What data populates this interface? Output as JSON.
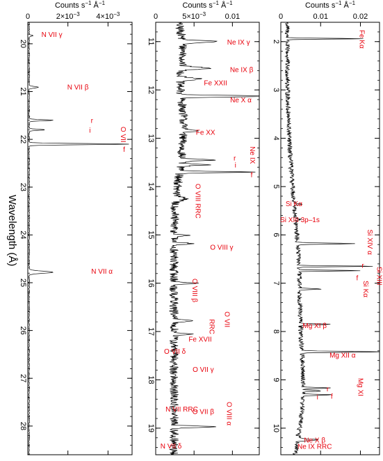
{
  "figure": {
    "ylabel": "Wavelength (Å)",
    "xlabel_main": "Counts s",
    "xlabel_sup1": "−1",
    "xlabel_mid": " Å",
    "xlabel_sup2": "−1",
    "line_color": "#000000",
    "label_color": "#e8000b"
  },
  "chart_data": [
    {
      "type": "line",
      "orientation": "wavelength-vertical",
      "xlabel": "Counts s⁻¹ Å⁻¹",
      "ylabel": "Wavelength (Å)",
      "xlim": [
        0,
        0.0052
      ],
      "ylim": [
        19.55,
        28.6
      ],
      "xticks": [
        {
          "v": 0,
          "main": "0"
        },
        {
          "v": 0.002,
          "main": "2×10",
          "sup": "−3"
        },
        {
          "v": 0.004,
          "main": "4×10",
          "sup": "−3"
        }
      ],
      "yticks": [
        20,
        21,
        22,
        23,
        24,
        25,
        26,
        27,
        28
      ],
      "baseline": 6e-05,
      "noise": 5e-05,
      "continuum": [],
      "lines": [
        {
          "w": 19.83,
          "amp": 0.0002,
          "sig": 0.012
        },
        {
          "w": 20.91,
          "amp": 0.00045,
          "sig": 0.015
        },
        {
          "w": 21.6,
          "amp": 0.0012,
          "sig": 0.012
        },
        {
          "w": 21.8,
          "amp": 0.0008,
          "sig": 0.012
        },
        {
          "w": 22.1,
          "amp": 0.005,
          "sig": 0.012
        },
        {
          "w": 24.78,
          "amp": 0.0012,
          "sig": 0.022
        }
      ],
      "labels": [
        {
          "text": "N VII γ",
          "w": 19.8,
          "v": 0.0012
        },
        {
          "text": "N VII β",
          "w": 20.9,
          "v": 0.0025
        },
        {
          "text": "r",
          "w": 21.6,
          "v": 0.0032
        },
        {
          "text": "i",
          "w": 21.8,
          "v": 0.0031
        },
        {
          "text": "O VII",
          "w": 21.9,
          "v": 0.00465,
          "rot": 90
        },
        {
          "text": "f",
          "w": 22.2,
          "v": 0.0048
        },
        {
          "text": "N VII α",
          "w": 24.75,
          "v": 0.0037
        }
      ]
    },
    {
      "type": "line",
      "orientation": "wavelength-vertical",
      "xlabel": "Counts s⁻¹ Å⁻¹",
      "ylabel": "Wavelength (Å)",
      "xlim": [
        0,
        0.0135
      ],
      "ylim": [
        10.6,
        19.55
      ],
      "xticks": [
        {
          "v": 0,
          "main": "0"
        },
        {
          "v": 0.005,
          "main": "5×10",
          "sup": "−3"
        },
        {
          "v": 0.01,
          "main": "0.01"
        }
      ],
      "yticks": [
        11,
        12,
        13,
        14,
        15,
        16,
        17,
        18,
        19
      ],
      "baseline": 0.0022,
      "noise": 0.0012,
      "continuum": [
        {
          "w": 11.2,
          "amp": 0.0012,
          "sig": 0.5
        },
        {
          "w": 12.5,
          "amp": 0.001,
          "sig": 0.4
        },
        {
          "w": 13.4,
          "amp": 0.0009,
          "sig": 0.5
        }
      ],
      "lines": [
        {
          "w": 11.0,
          "amp": 0.0045,
          "sig": 0.02
        },
        {
          "w": 11.55,
          "amp": 0.004,
          "sig": 0.02
        },
        {
          "w": 11.77,
          "amp": 0.003,
          "sig": 0.02
        },
        {
          "w": 12.13,
          "amp": 0.0125,
          "sig": 0.015
        },
        {
          "w": 12.84,
          "amp": 0.002,
          "sig": 0.02
        },
        {
          "w": 13.45,
          "amp": 0.0045,
          "sig": 0.015
        },
        {
          "w": 13.55,
          "amp": 0.0035,
          "sig": 0.015
        },
        {
          "w": 13.7,
          "amp": 0.0095,
          "sig": 0.012
        },
        {
          "w": 14.25,
          "amp": 0.0015,
          "sig": 0.03
        },
        {
          "w": 15.01,
          "amp": 0.002,
          "sig": 0.015
        },
        {
          "w": 15.18,
          "amp": 0.0022,
          "sig": 0.015
        },
        {
          "w": 16.0,
          "amp": 0.003,
          "sig": 0.015
        },
        {
          "w": 16.78,
          "amp": 0.0028,
          "sig": 0.015
        },
        {
          "w": 17.05,
          "amp": 0.0025,
          "sig": 0.015
        },
        {
          "w": 18.97,
          "amp": 0.0055,
          "sig": 0.015
        }
      ],
      "labels": [
        {
          "text": "Ne IX γ",
          "w": 11.0,
          "v": 0.0108
        },
        {
          "text": "Ne IX β",
          "w": 11.57,
          "v": 0.0112
        },
        {
          "text": "Fe XXII",
          "w": 11.85,
          "v": 0.0078
        },
        {
          "text": "Ne X α",
          "w": 12.2,
          "v": 0.0111
        },
        {
          "text": "Fe XX",
          "w": 12.87,
          "v": 0.0065
        },
        {
          "text": "r",
          "w": 13.4,
          "v": 0.0103
        },
        {
          "text": "i",
          "w": 13.55,
          "v": 0.0104
        },
        {
          "text": "Ne IX",
          "w": 13.35,
          "v": 0.0123,
          "rot": 90
        },
        {
          "text": "f",
          "w": 13.75,
          "v": 0.0125
        },
        {
          "text": "O VIII RRC",
          "w": 14.3,
          "v": 0.0052,
          "rot": 90
        },
        {
          "text": "O VIII γ",
          "w": 15.25,
          "v": 0.0086
        },
        {
          "text": "O VIII β",
          "w": 16.15,
          "v": 0.0048,
          "rot": 90
        },
        {
          "text": "O VII",
          "w": 16.75,
          "v": 0.009,
          "rot": 90
        },
        {
          "text": "RRC",
          "w": 16.9,
          "v": 0.007,
          "rot": 90
        },
        {
          "text": "Fe XVII",
          "w": 17.15,
          "v": 0.0058
        },
        {
          "text": "O VII δ",
          "w": 17.4,
          "v": 0.0025
        },
        {
          "text": "O VII γ",
          "w": 17.78,
          "v": 0.0062
        },
        {
          "text": "N VII RRC",
          "w": 18.6,
          "v": 0.0034
        },
        {
          "text": "O VII β",
          "w": 18.65,
          "v": 0.0062
        },
        {
          "text": "O VIII α",
          "w": 18.7,
          "v": 0.0093,
          "rot": 90
        },
        {
          "text": "N VII δ",
          "w": 19.36,
          "v": 0.002
        }
      ]
    },
    {
      "type": "line",
      "orientation": "wavelength-vertical",
      "xlabel": "Counts s⁻¹ Å⁻¹",
      "ylabel": "Wavelength (Å)",
      "xlim": [
        0,
        0.0248
      ],
      "ylim": [
        1.6,
        10.55
      ],
      "xticks": [
        {
          "v": 0,
          "main": "0"
        },
        {
          "v": 0.01,
          "main": "0.01"
        },
        {
          "v": 0.02,
          "main": "0.02"
        }
      ],
      "yticks": [
        2,
        3,
        4,
        5,
        6,
        7,
        8,
        9,
        10
      ],
      "baseline": 0.0014,
      "noise": 0.0012,
      "continuum": [
        {
          "w": 7.0,
          "amp": 0.003,
          "sig": 1.6
        },
        {
          "w": 9.5,
          "amp": 0.003,
          "sig": 1.0
        }
      ],
      "lines": [
        {
          "w": 1.94,
          "amp": 0.0195,
          "sig": 0.008
        },
        {
          "w": 5.37,
          "amp": 0.002,
          "sig": 0.01
        },
        {
          "w": 5.68,
          "amp": 0.0015,
          "sig": 0.01
        },
        {
          "w": 6.18,
          "amp": 0.015,
          "sig": 0.01
        },
        {
          "w": 6.65,
          "amp": 0.019,
          "sig": 0.008
        },
        {
          "w": 6.74,
          "amp": 0.016,
          "sig": 0.008
        },
        {
          "w": 7.12,
          "amp": 0.0055,
          "sig": 0.01
        },
        {
          "w": 7.85,
          "amp": 0.0075,
          "sig": 0.01
        },
        {
          "w": 8.42,
          "amp": 0.0205,
          "sig": 0.01
        },
        {
          "w": 9.17,
          "amp": 0.007,
          "sig": 0.01
        },
        {
          "w": 9.23,
          "amp": 0.005,
          "sig": 0.01
        },
        {
          "w": 9.31,
          "amp": 0.0075,
          "sig": 0.01
        },
        {
          "w": 10.24,
          "amp": 0.0055,
          "sig": 0.015
        }
      ],
      "labels": [
        {
          "text": "Fe Kα",
          "w": 1.95,
          "v": 0.0198,
          "rot": 90
        },
        {
          "text": "Si Kα",
          "w": 5.35,
          "v": 0.0033
        },
        {
          "text": "Si XIII 3p–1s",
          "w": 5.68,
          "v": 0.0048
        },
        {
          "text": "Si XIV α",
          "w": 6.15,
          "v": 0.0218,
          "rot": 90
        },
        {
          "text": "r",
          "w": 6.62,
          "v": 0.0206
        },
        {
          "text": "Si XIII",
          "w": 6.85,
          "v": 0.0242,
          "rot": 90
        },
        {
          "text": "f",
          "w": 6.88,
          "v": 0.0192
        },
        {
          "text": "Si Kα",
          "w": 7.12,
          "v": 0.0208,
          "rot": 90
        },
        {
          "text": "Mg XI β",
          "w": 7.87,
          "v": 0.0085
        },
        {
          "text": "Mg XII α",
          "w": 8.48,
          "v": 0.0155
        },
        {
          "text": "r",
          "w": 9.18,
          "v": 0.0118
        },
        {
          "text": "Mg XI",
          "w": 9.15,
          "v": 0.0195,
          "rot": 90
        },
        {
          "text": "f",
          "w": 9.33,
          "v": 0.0128
        },
        {
          "text": "i",
          "w": 9.35,
          "v": 0.0092
        },
        {
          "text": "Ne X β",
          "w": 10.24,
          "v": 0.0085
        },
        {
          "text": "Ne IX RRC",
          "w": 10.37,
          "v": 0.0085
        }
      ]
    }
  ]
}
